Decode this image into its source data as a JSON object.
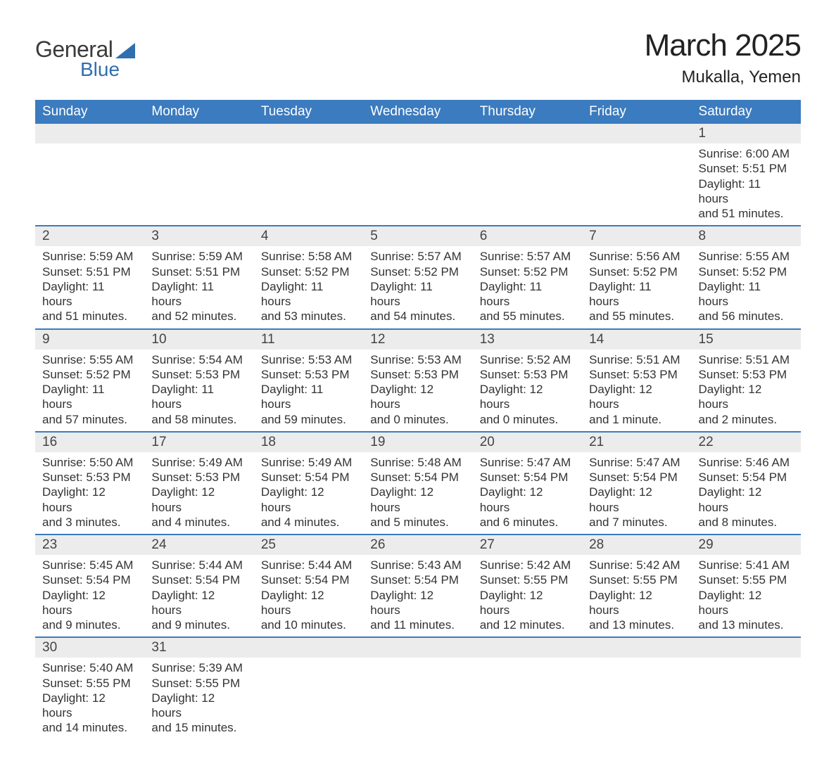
{
  "brand": {
    "word1": "General",
    "word2": "Blue"
  },
  "title": "March 2025",
  "subtitle": "Mukalla, Yemen",
  "header_bg": "#3b7bbf",
  "header_fg": "#ffffff",
  "numrow_bg": "#ececec",
  "divider_color": "#3b7bbf",
  "body_bg": "#ffffff",
  "text_color": "#333333",
  "title_fontsize": 44,
  "subtitle_fontsize": 24,
  "header_fontsize": 19,
  "cell_fontsize": 17,
  "days": [
    "Sunday",
    "Monday",
    "Tuesday",
    "Wednesday",
    "Thursday",
    "Friday",
    "Saturday"
  ],
  "weeks": [
    [
      null,
      null,
      null,
      null,
      null,
      null,
      {
        "n": "1",
        "sr": "Sunrise: 6:00 AM",
        "ss": "Sunset: 5:51 PM",
        "d1": "Daylight: 11 hours",
        "d2": "and 51 minutes."
      }
    ],
    [
      {
        "n": "2",
        "sr": "Sunrise: 5:59 AM",
        "ss": "Sunset: 5:51 PM",
        "d1": "Daylight: 11 hours",
        "d2": "and 51 minutes."
      },
      {
        "n": "3",
        "sr": "Sunrise: 5:59 AM",
        "ss": "Sunset: 5:51 PM",
        "d1": "Daylight: 11 hours",
        "d2": "and 52 minutes."
      },
      {
        "n": "4",
        "sr": "Sunrise: 5:58 AM",
        "ss": "Sunset: 5:52 PM",
        "d1": "Daylight: 11 hours",
        "d2": "and 53 minutes."
      },
      {
        "n": "5",
        "sr": "Sunrise: 5:57 AM",
        "ss": "Sunset: 5:52 PM",
        "d1": "Daylight: 11 hours",
        "d2": "and 54 minutes."
      },
      {
        "n": "6",
        "sr": "Sunrise: 5:57 AM",
        "ss": "Sunset: 5:52 PM",
        "d1": "Daylight: 11 hours",
        "d2": "and 55 minutes."
      },
      {
        "n": "7",
        "sr": "Sunrise: 5:56 AM",
        "ss": "Sunset: 5:52 PM",
        "d1": "Daylight: 11 hours",
        "d2": "and 55 minutes."
      },
      {
        "n": "8",
        "sr": "Sunrise: 5:55 AM",
        "ss": "Sunset: 5:52 PM",
        "d1": "Daylight: 11 hours",
        "d2": "and 56 minutes."
      }
    ],
    [
      {
        "n": "9",
        "sr": "Sunrise: 5:55 AM",
        "ss": "Sunset: 5:52 PM",
        "d1": "Daylight: 11 hours",
        "d2": "and 57 minutes."
      },
      {
        "n": "10",
        "sr": "Sunrise: 5:54 AM",
        "ss": "Sunset: 5:53 PM",
        "d1": "Daylight: 11 hours",
        "d2": "and 58 minutes."
      },
      {
        "n": "11",
        "sr": "Sunrise: 5:53 AM",
        "ss": "Sunset: 5:53 PM",
        "d1": "Daylight: 11 hours",
        "d2": "and 59 minutes."
      },
      {
        "n": "12",
        "sr": "Sunrise: 5:53 AM",
        "ss": "Sunset: 5:53 PM",
        "d1": "Daylight: 12 hours",
        "d2": "and 0 minutes."
      },
      {
        "n": "13",
        "sr": "Sunrise: 5:52 AM",
        "ss": "Sunset: 5:53 PM",
        "d1": "Daylight: 12 hours",
        "d2": "and 0 minutes."
      },
      {
        "n": "14",
        "sr": "Sunrise: 5:51 AM",
        "ss": "Sunset: 5:53 PM",
        "d1": "Daylight: 12 hours",
        "d2": "and 1 minute."
      },
      {
        "n": "15",
        "sr": "Sunrise: 5:51 AM",
        "ss": "Sunset: 5:53 PM",
        "d1": "Daylight: 12 hours",
        "d2": "and 2 minutes."
      }
    ],
    [
      {
        "n": "16",
        "sr": "Sunrise: 5:50 AM",
        "ss": "Sunset: 5:53 PM",
        "d1": "Daylight: 12 hours",
        "d2": "and 3 minutes."
      },
      {
        "n": "17",
        "sr": "Sunrise: 5:49 AM",
        "ss": "Sunset: 5:53 PM",
        "d1": "Daylight: 12 hours",
        "d2": "and 4 minutes."
      },
      {
        "n": "18",
        "sr": "Sunrise: 5:49 AM",
        "ss": "Sunset: 5:54 PM",
        "d1": "Daylight: 12 hours",
        "d2": "and 4 minutes."
      },
      {
        "n": "19",
        "sr": "Sunrise: 5:48 AM",
        "ss": "Sunset: 5:54 PM",
        "d1": "Daylight: 12 hours",
        "d2": "and 5 minutes."
      },
      {
        "n": "20",
        "sr": "Sunrise: 5:47 AM",
        "ss": "Sunset: 5:54 PM",
        "d1": "Daylight: 12 hours",
        "d2": "and 6 minutes."
      },
      {
        "n": "21",
        "sr": "Sunrise: 5:47 AM",
        "ss": "Sunset: 5:54 PM",
        "d1": "Daylight: 12 hours",
        "d2": "and 7 minutes."
      },
      {
        "n": "22",
        "sr": "Sunrise: 5:46 AM",
        "ss": "Sunset: 5:54 PM",
        "d1": "Daylight: 12 hours",
        "d2": "and 8 minutes."
      }
    ],
    [
      {
        "n": "23",
        "sr": "Sunrise: 5:45 AM",
        "ss": "Sunset: 5:54 PM",
        "d1": "Daylight: 12 hours",
        "d2": "and 9 minutes."
      },
      {
        "n": "24",
        "sr": "Sunrise: 5:44 AM",
        "ss": "Sunset: 5:54 PM",
        "d1": "Daylight: 12 hours",
        "d2": "and 9 minutes."
      },
      {
        "n": "25",
        "sr": "Sunrise: 5:44 AM",
        "ss": "Sunset: 5:54 PM",
        "d1": "Daylight: 12 hours",
        "d2": "and 10 minutes."
      },
      {
        "n": "26",
        "sr": "Sunrise: 5:43 AM",
        "ss": "Sunset: 5:54 PM",
        "d1": "Daylight: 12 hours",
        "d2": "and 11 minutes."
      },
      {
        "n": "27",
        "sr": "Sunrise: 5:42 AM",
        "ss": "Sunset: 5:55 PM",
        "d1": "Daylight: 12 hours",
        "d2": "and 12 minutes."
      },
      {
        "n": "28",
        "sr": "Sunrise: 5:42 AM",
        "ss": "Sunset: 5:55 PM",
        "d1": "Daylight: 12 hours",
        "d2": "and 13 minutes."
      },
      {
        "n": "29",
        "sr": "Sunrise: 5:41 AM",
        "ss": "Sunset: 5:55 PM",
        "d1": "Daylight: 12 hours",
        "d2": "and 13 minutes."
      }
    ],
    [
      {
        "n": "30",
        "sr": "Sunrise: 5:40 AM",
        "ss": "Sunset: 5:55 PM",
        "d1": "Daylight: 12 hours",
        "d2": "and 14 minutes."
      },
      {
        "n": "31",
        "sr": "Sunrise: 5:39 AM",
        "ss": "Sunset: 5:55 PM",
        "d1": "Daylight: 12 hours",
        "d2": "and 15 minutes."
      },
      null,
      null,
      null,
      null,
      null
    ]
  ]
}
